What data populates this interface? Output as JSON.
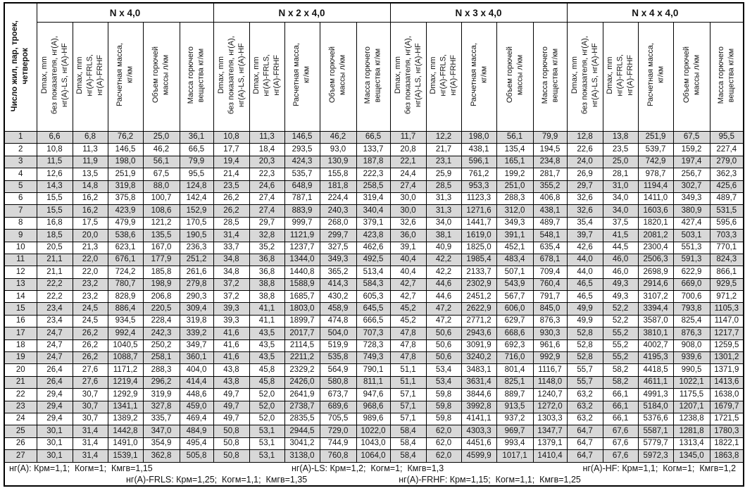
{
  "table": {
    "corner_label": "Число жил, пар, троек,\nчетверок",
    "groups": [
      {
        "title": "N x 4,0"
      },
      {
        "title": "N x 2 x 4,0"
      },
      {
        "title": "N x 3 x 4,0"
      },
      {
        "title": "N x 4 x 4,0"
      }
    ],
    "sub_headers": [
      "Dmax, mm\nбез показателя, нг(A),\nнг(A)-LS, нг(A)-HF",
      "Dmax, mm\nнг(A)-FRLS,\nнг(A)-FRHF",
      "Расчетная масса,\nкг/км",
      "Объем горючей\nмассы л/км",
      "Масса горючего\nвещества кг/км"
    ],
    "rows": [
      [
        "1",
        "6,6",
        "6,8",
        "76,2",
        "25,0",
        "36,1",
        "10,8",
        "11,3",
        "146,5",
        "46,2",
        "66,5",
        "11,7",
        "12,2",
        "198,0",
        "56,1",
        "79,9",
        "12,8",
        "13,8",
        "251,9",
        "67,5",
        "95,5"
      ],
      [
        "2",
        "10,8",
        "11,3",
        "146,5",
        "46,2",
        "66,5",
        "17,7",
        "18,4",
        "293,5",
        "93,0",
        "133,7",
        "20,8",
        "21,7",
        "438,1",
        "135,4",
        "194,5",
        "22,6",
        "23,5",
        "539,7",
        "159,2",
        "227,4"
      ],
      [
        "3",
        "11,5",
        "11,9",
        "198,0",
        "56,1",
        "79,9",
        "19,4",
        "20,3",
        "424,3",
        "130,9",
        "187,8",
        "22,1",
        "23,1",
        "596,1",
        "165,1",
        "234,8",
        "24,0",
        "25,0",
        "742,9",
        "197,4",
        "279,0"
      ],
      [
        "4",
        "12,6",
        "13,5",
        "251,9",
        "67,5",
        "95,5",
        "21,4",
        "22,3",
        "535,7",
        "155,8",
        "222,3",
        "24,4",
        "25,9",
        "761,2",
        "199,2",
        "281,7",
        "26,9",
        "28,1",
        "978,7",
        "256,7",
        "362,3"
      ],
      [
        "5",
        "14,3",
        "14,8",
        "319,8",
        "88,0",
        "124,8",
        "23,5",
        "24,6",
        "648,9",
        "181,8",
        "258,5",
        "27,4",
        "28,5",
        "953,3",
        "251,0",
        "355,2",
        "29,7",
        "31,0",
        "1194,4",
        "302,7",
        "425,6"
      ],
      [
        "6",
        "15,5",
        "16,2",
        "375,8",
        "100,7",
        "142,4",
        "26,2",
        "27,4",
        "787,1",
        "224,4",
        "319,4",
        "30,0",
        "31,3",
        "1123,3",
        "288,3",
        "406,8",
        "32,6",
        "34,0",
        "1411,0",
        "349,3",
        "489,7"
      ],
      [
        "7",
        "15,5",
        "16,2",
        "423,9",
        "108,6",
        "152,9",
        "26,2",
        "27,4",
        "883,9",
        "240,3",
        "340,4",
        "30,0",
        "31,3",
        "1271,6",
        "312,0",
        "438,1",
        "32,6",
        "34,0",
        "1603,6",
        "380,9",
        "531,5"
      ],
      [
        "8",
        "16,8",
        "17,5",
        "479,9",
        "121,2",
        "170,5",
        "28,5",
        "29,7",
        "999,7",
        "268,0",
        "379,1",
        "32,6",
        "34,0",
        "1441,7",
        "349,3",
        "489,7",
        "35,4",
        "37,5",
        "1820,1",
        "427,4",
        "595,6"
      ],
      [
        "9",
        "18,5",
        "20,0",
        "538,6",
        "135,5",
        "190,5",
        "31,4",
        "32,8",
        "1121,9",
        "299,7",
        "423,8",
        "36,0",
        "38,1",
        "1619,0",
        "391,1",
        "548,1",
        "39,7",
        "41,5",
        "2081,2",
        "503,1",
        "703,3"
      ],
      [
        "10",
        "20,5",
        "21,3",
        "623,1",
        "167,0",
        "236,3",
        "33,7",
        "35,2",
        "1237,7",
        "327,5",
        "462,6",
        "39,1",
        "40,9",
        "1825,0",
        "452,1",
        "635,4",
        "42,6",
        "44,5",
        "2300,4",
        "551,3",
        "770,1"
      ],
      [
        "11",
        "21,1",
        "22,0",
        "676,1",
        "177,9",
        "251,2",
        "34,8",
        "36,8",
        "1344,0",
        "349,3",
        "492,5",
        "40,4",
        "42,2",
        "1985,4",
        "483,4",
        "678,1",
        "44,0",
        "46,0",
        "2506,3",
        "591,3",
        "824,3"
      ],
      [
        "12",
        "21,1",
        "22,0",
        "724,2",
        "185,8",
        "261,6",
        "34,8",
        "36,8",
        "1440,8",
        "365,2",
        "513,4",
        "40,4",
        "42,2",
        "2133,7",
        "507,1",
        "709,4",
        "44,0",
        "46,0",
        "2698,9",
        "622,9",
        "866,1"
      ],
      [
        "13",
        "22,2",
        "23,2",
        "780,7",
        "198,9",
        "279,8",
        "37,2",
        "38,8",
        "1588,9",
        "414,3",
        "584,3",
        "42,7",
        "44,6",
        "2302,9",
        "543,9",
        "760,4",
        "46,5",
        "49,3",
        "2914,6",
        "669,0",
        "929,5"
      ],
      [
        "14",
        "22,2",
        "23,2",
        "828,9",
        "206,8",
        "290,3",
        "37,2",
        "38,8",
        "1685,7",
        "430,2",
        "605,3",
        "42,7",
        "44,6",
        "2451,2",
        "567,7",
        "791,7",
        "46,5",
        "49,3",
        "3107,2",
        "700,6",
        "971,2"
      ],
      [
        "15",
        "23,4",
        "24,5",
        "886,4",
        "220,5",
        "309,4",
        "39,3",
        "41,1",
        "1803,0",
        "458,9",
        "645,5",
        "45,2",
        "47,2",
        "2622,9",
        "606,0",
        "845,0",
        "49,9",
        "52,2",
        "3394,4",
        "793,8",
        "1105,3"
      ],
      [
        "16",
        "23,4",
        "24,5",
        "934,5",
        "228,4",
        "319,8",
        "39,3",
        "41,1",
        "1899,7",
        "474,8",
        "666,5",
        "45,2",
        "47,2",
        "2771,2",
        "629,7",
        "876,3",
        "49,9",
        "52,2",
        "3587,0",
        "825,4",
        "1147,0"
      ],
      [
        "17",
        "24,7",
        "26,2",
        "992,4",
        "242,3",
        "339,2",
        "41,6",
        "43,5",
        "2017,7",
        "504,0",
        "707,3",
        "47,8",
        "50,6",
        "2943,6",
        "668,6",
        "930,3",
        "52,8",
        "55,2",
        "3810,1",
        "876,3",
        "1217,7"
      ],
      [
        "18",
        "24,7",
        "26,2",
        "1040,5",
        "250,2",
        "349,7",
        "41,6",
        "43,5",
        "2114,5",
        "519,9",
        "728,3",
        "47,8",
        "50,6",
        "3091,9",
        "692,3",
        "961,6",
        "52,8",
        "55,2",
        "4002,7",
        "908,0",
        "1259,5"
      ],
      [
        "19",
        "24,7",
        "26,2",
        "1088,7",
        "258,1",
        "360,1",
        "41,6",
        "43,5",
        "2211,2",
        "535,8",
        "749,3",
        "47,8",
        "50,6",
        "3240,2",
        "716,0",
        "992,9",
        "52,8",
        "55,2",
        "4195,3",
        "939,6",
        "1301,2"
      ],
      [
        "20",
        "26,4",
        "27,6",
        "1171,2",
        "288,3",
        "404,0",
        "43,8",
        "45,8",
        "2329,2",
        "564,9",
        "790,1",
        "51,1",
        "53,4",
        "3483,1",
        "801,4",
        "1116,7",
        "55,7",
        "58,2",
        "4418,5",
        "990,5",
        "1371,9"
      ],
      [
        "21",
        "26,4",
        "27,6",
        "1219,4",
        "296,2",
        "414,4",
        "43,8",
        "45,8",
        "2426,0",
        "580,8",
        "811,1",
        "51,1",
        "53,4",
        "3631,4",
        "825,1",
        "1148,0",
        "55,7",
        "58,2",
        "4611,1",
        "1022,1",
        "1413,6"
      ],
      [
        "22",
        "29,4",
        "30,7",
        "1292,9",
        "319,9",
        "448,6",
        "49,7",
        "52,0",
        "2641,9",
        "673,7",
        "947,6",
        "57,1",
        "59,8",
        "3844,6",
        "889,7",
        "1240,7",
        "63,2",
        "66,1",
        "4991,3",
        "1175,5",
        "1638,0"
      ],
      [
        "23",
        "29,4",
        "30,7",
        "1341,1",
        "327,8",
        "459,0",
        "49,7",
        "52,0",
        "2738,7",
        "689,6",
        "968,6",
        "57,1",
        "59,8",
        "3992,8",
        "913,5",
        "1272,0",
        "63,2",
        "66,1",
        "5184,0",
        "1207,1",
        "1679,7"
      ],
      [
        "24",
        "29,4",
        "30,7",
        "1389,2",
        "335,7",
        "469,4",
        "49,7",
        "52,0",
        "2835,5",
        "705,5",
        "989,6",
        "57,1",
        "59,8",
        "4141,1",
        "937,2",
        "1303,3",
        "63,2",
        "66,1",
        "5376,6",
        "1238,8",
        "1721,5"
      ],
      [
        "25",
        "30,1",
        "31,4",
        "1442,8",
        "347,0",
        "484,9",
        "50,8",
        "53,1",
        "2944,5",
        "729,0",
        "1022,0",
        "58,4",
        "62,0",
        "4303,3",
        "969,7",
        "1347,7",
        "64,7",
        "67,6",
        "5587,1",
        "1281,8",
        "1780,3"
      ],
      [
        "26",
        "30,1",
        "31,4",
        "1491,0",
        "354,9",
        "495,4",
        "50,8",
        "53,1",
        "3041,2",
        "744,9",
        "1043,0",
        "58,4",
        "62,0",
        "4451,6",
        "993,4",
        "1379,1",
        "64,7",
        "67,6",
        "5779,7",
        "1313,4",
        "1822,1"
      ],
      [
        "27",
        "30,1",
        "31,4",
        "1539,1",
        "362,8",
        "505,8",
        "50,8",
        "53,1",
        "3138,0",
        "760,8",
        "1064,0",
        "58,4",
        "62,0",
        "4599,9",
        "1017,1",
        "1410,4",
        "64,7",
        "67,6",
        "5972,3",
        "1345,0",
        "1863,8"
      ]
    ],
    "footnotes": {
      "ng_a": "нг(A): Крм=1,1;  Когм=1;  Кмгв=1,15",
      "ng_a_ls": "нг(A)-LS: Крм=1,2;  Когм=1;  Кмгв=1,3",
      "ng_a_hf": "нг(A)-HF: Крм=1,1;  Когм=1;  Кмгв=1,2",
      "ng_a_frls": "нг(A)-FRLS: Крм=1,25;  Когм=1,1;  Кмгв=1,35",
      "ng_a_frhf": "нг(A)-FRHF: Крм=1,15;  Когм=1,1;  Кмгв=1,25"
    },
    "colors": {
      "row_shade": "#d8d8d8",
      "border": "#000000",
      "text": "#141414"
    }
  }
}
